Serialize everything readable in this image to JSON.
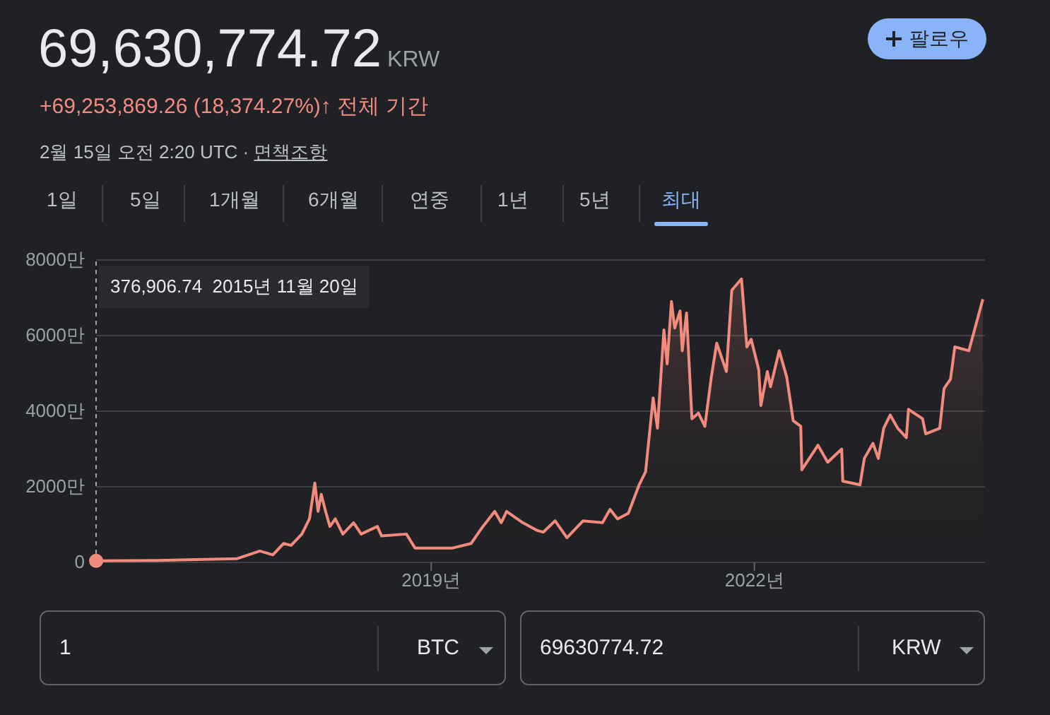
{
  "chart_data": {
    "type": "area",
    "title": "69,630,774.72",
    "subtitle": "KRW",
    "annotations": [
      "+69,253,869.26 (18,374.27%)↑",
      "전체 기간",
      "2월 15일 오전 2:20 UTC · ",
      "면책조항",
      "팔로우",
      "1일",
      "5일",
      "1개월",
      "6개월",
      "연중",
      "1년",
      "5년",
      "최대",
      "376,906.74  2015년 11월 20일",
      "1",
      "BTC",
      "69630774.72",
      "KRW"
    ],
    "xlim": [
      2015.89,
      2024.14
    ],
    "xticks": [
      {
        "value": 2019,
        "label": "2019년"
      },
      {
        "value": 2022,
        "label": "2022년"
      }
    ],
    "ylim": [
      0,
      8000
    ],
    "yticks": [
      0,
      {
        "value": 2000,
        "label": "2000만"
      },
      {
        "value": 4000,
        "label": "4000만"
      },
      {
        "value": 6000,
        "label": "6000만"
      },
      {
        "value": 8000,
        "label": "8000만"
      }
    ],
    "grid": "y",
    "ref_lines": [
      {
        "axis": "x",
        "value": 2015.89,
        "color": "#9aa0a6",
        "line_style": "dashed"
      }
    ],
    "series": [
      {
        "color": "#f28b7d",
        "x": [
          2015.89,
          2016.46,
          2017.2,
          2017.41,
          2017.53,
          2017.63,
          2017.7,
          2017.8,
          2017.87,
          2017.92,
          2017.95,
          2017.98,
          2018.02,
          2018.06,
          2018.11,
          2018.18,
          2018.28,
          2018.35,
          2018.5,
          2018.54,
          2018.77,
          2018.85,
          2019.2,
          2019.37,
          2019.48,
          2019.59,
          2019.65,
          2019.7,
          2019.85,
          2019.98,
          2020.04,
          2020.15,
          2020.26,
          2020.41,
          2020.59,
          2020.66,
          2020.73,
          2020.83,
          2020.93,
          2020.99,
          2021.06,
          2021.1,
          2021.16,
          2021.19,
          2021.23,
          2021.26,
          2021.31,
          2021.33,
          2021.37,
          2021.42,
          2021.48,
          2021.54,
          2021.6,
          2021.65,
          2021.74,
          2021.79,
          2021.88,
          2021.93,
          2021.97,
          2022.04,
          2022.06,
          2022.12,
          2022.15,
          2022.23,
          2022.3,
          2022.36,
          2022.43,
          2022.44,
          2022.59,
          2022.68,
          2022.81,
          2022.82,
          2022.98,
          2023.02,
          2023.1,
          2023.15,
          2023.2,
          2023.26,
          2023.33,
          2023.41,
          2023.43,
          2023.56,
          2023.59,
          2023.72,
          2023.76,
          2023.82,
          2023.86,
          2023.99,
          2024.12
        ],
        "values": [
          40,
          50,
          100,
          300,
          200,
          500,
          450,
          750,
          1150,
          2100,
          1350,
          1800,
          1350,
          950,
          1150,
          750,
          1050,
          750,
          950,
          700,
          750,
          380,
          380,
          500,
          950,
          1350,
          1050,
          1350,
          1050,
          850,
          800,
          1100,
          650,
          1100,
          1050,
          1400,
          1150,
          1300,
          2050,
          2400,
          4350,
          3550,
          6150,
          5250,
          6900,
          6200,
          6650,
          5600,
          6600,
          3800,
          3950,
          3600,
          4900,
          5800,
          5050,
          7200,
          7500,
          5700,
          5900,
          5100,
          4150,
          5050,
          4650,
          5600,
          4900,
          3750,
          3600,
          2450,
          3100,
          2650,
          3000,
          2150,
          2050,
          2750,
          3150,
          2750,
          3550,
          3900,
          3550,
          3300,
          4050,
          3800,
          3400,
          3550,
          4600,
          4850,
          5700,
          5600,
          6963
        ]
      }
    ]
  }
}
